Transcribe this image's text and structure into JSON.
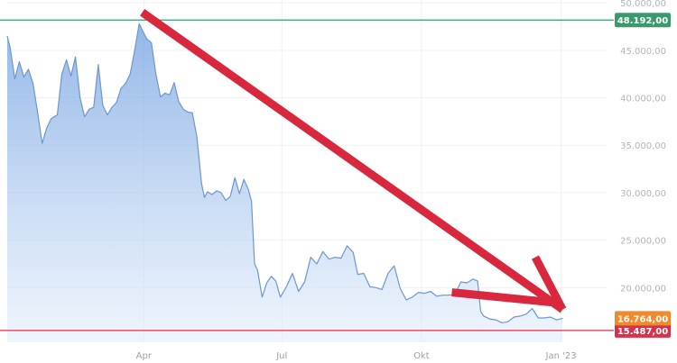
{
  "chart_data": {
    "type": "area",
    "x_ticks": [
      "Apr",
      "Jul",
      "Okt",
      "Jan '23"
    ],
    "y_ticks": [
      "50.000,00",
      "45.000,00",
      "40.000,00",
      "35.000,00",
      "30.000,00",
      "25.000,00",
      "20.000,00"
    ],
    "y_tick_values": [
      50000,
      45000,
      40000,
      35000,
      30000,
      25000,
      20000
    ],
    "ylim": [
      15000,
      50300
    ],
    "x_range": [
      "2022-01-01",
      "2023-01-31"
    ],
    "grid": true,
    "series": [
      {
        "points": [
          [
            "2022-01-01",
            46500
          ],
          [
            "2022-01-03",
            45200
          ],
          [
            "2022-01-06",
            42000
          ],
          [
            "2022-01-09",
            43800
          ],
          [
            "2022-01-12",
            42200
          ],
          [
            "2022-01-15",
            43000
          ],
          [
            "2022-01-18",
            41500
          ],
          [
            "2022-01-21",
            38500
          ],
          [
            "2022-01-24",
            35200
          ],
          [
            "2022-01-27",
            36800
          ],
          [
            "2022-01-30",
            37800
          ],
          [
            "2022-02-03",
            38200
          ],
          [
            "2022-02-06",
            42500
          ],
          [
            "2022-02-09",
            44000
          ],
          [
            "2022-02-12",
            42300
          ],
          [
            "2022-02-15",
            44300
          ],
          [
            "2022-02-18",
            40000
          ],
          [
            "2022-02-21",
            38000
          ],
          [
            "2022-02-24",
            38800
          ],
          [
            "2022-02-27",
            39000
          ],
          [
            "2022-03-02",
            43500
          ],
          [
            "2022-03-05",
            39200
          ],
          [
            "2022-03-08",
            38200
          ],
          [
            "2022-03-11",
            39000
          ],
          [
            "2022-03-14",
            39500
          ],
          [
            "2022-03-17",
            41000
          ],
          [
            "2022-03-20",
            41500
          ],
          [
            "2022-03-23",
            42500
          ],
          [
            "2022-03-26",
            45000
          ],
          [
            "2022-03-29",
            47800
          ],
          [
            "2022-04-01",
            46800
          ],
          [
            "2022-04-03",
            46200
          ],
          [
            "2022-04-06",
            45800
          ],
          [
            "2022-04-09",
            42500
          ],
          [
            "2022-04-12",
            40100
          ],
          [
            "2022-04-15",
            40500
          ],
          [
            "2022-04-18",
            40300
          ],
          [
            "2022-04-21",
            41600
          ],
          [
            "2022-04-24",
            39600
          ],
          [
            "2022-04-27",
            38800
          ],
          [
            "2022-04-30",
            38500
          ],
          [
            "2022-05-03",
            38400
          ],
          [
            "2022-05-06",
            35900
          ],
          [
            "2022-05-09",
            31000
          ],
          [
            "2022-05-11",
            29500
          ],
          [
            "2022-05-13",
            30100
          ],
          [
            "2022-05-16",
            29800
          ],
          [
            "2022-05-19",
            30200
          ],
          [
            "2022-05-22",
            30000
          ],
          [
            "2022-05-25",
            29200
          ],
          [
            "2022-05-28",
            29600
          ],
          [
            "2022-05-31",
            31600
          ],
          [
            "2022-06-03",
            29900
          ],
          [
            "2022-06-06",
            31400
          ],
          [
            "2022-06-09",
            30300
          ],
          [
            "2022-06-11",
            29100
          ],
          [
            "2022-06-13",
            22500
          ],
          [
            "2022-06-15",
            21800
          ],
          [
            "2022-06-18",
            19000
          ],
          [
            "2022-06-21",
            20500
          ],
          [
            "2022-06-24",
            21200
          ],
          [
            "2022-06-27",
            20700
          ],
          [
            "2022-06-30",
            19000
          ],
          [
            "2022-07-04",
            20100
          ],
          [
            "2022-07-08",
            21500
          ],
          [
            "2022-07-12",
            19600
          ],
          [
            "2022-07-16",
            20600
          ],
          [
            "2022-07-20",
            23200
          ],
          [
            "2022-07-24",
            22500
          ],
          [
            "2022-07-28",
            23800
          ],
          [
            "2022-08-01",
            23000
          ],
          [
            "2022-08-05",
            23200
          ],
          [
            "2022-08-09",
            23100
          ],
          [
            "2022-08-13",
            24400
          ],
          [
            "2022-08-17",
            23700
          ],
          [
            "2022-08-20",
            21400
          ],
          [
            "2022-08-24",
            21500
          ],
          [
            "2022-08-28",
            20100
          ],
          [
            "2022-09-01",
            20000
          ],
          [
            "2022-09-05",
            19800
          ],
          [
            "2022-09-09",
            21500
          ],
          [
            "2022-09-13",
            22300
          ],
          [
            "2022-09-17",
            19900
          ],
          [
            "2022-09-21",
            18700
          ],
          [
            "2022-09-25",
            19000
          ],
          [
            "2022-09-29",
            19500
          ],
          [
            "2022-10-03",
            19400
          ],
          [
            "2022-10-07",
            19600
          ],
          [
            "2022-10-11",
            19100
          ],
          [
            "2022-10-15",
            19200
          ],
          [
            "2022-10-19",
            19200
          ],
          [
            "2022-10-23",
            19300
          ],
          [
            "2022-10-27",
            20600
          ],
          [
            "2022-10-31",
            20500
          ],
          [
            "2022-11-04",
            20900
          ],
          [
            "2022-11-07",
            20700
          ],
          [
            "2022-11-09",
            17500
          ],
          [
            "2022-11-11",
            17000
          ],
          [
            "2022-11-15",
            16700
          ],
          [
            "2022-11-19",
            16600
          ],
          [
            "2022-11-23",
            16300
          ],
          [
            "2022-11-27",
            16400
          ],
          [
            "2022-12-01",
            16900
          ],
          [
            "2022-12-05",
            17000
          ],
          [
            "2022-12-09",
            17200
          ],
          [
            "2022-12-13",
            17800
          ],
          [
            "2022-12-17",
            16800
          ],
          [
            "2022-12-21",
            16800
          ],
          [
            "2022-12-25",
            16900
          ],
          [
            "2022-12-29",
            16600
          ],
          [
            "2023-01-02",
            16764
          ]
        ]
      }
    ],
    "reference_lines": [
      {
        "value": 48192,
        "label": "48.192,00",
        "color": "#3a9a6e"
      },
      {
        "value": 15487,
        "label": "15.487,00",
        "color": "#d9304c"
      }
    ],
    "last_value": {
      "value": 16764,
      "label": "16.764,00",
      "color": "#f08a2c"
    },
    "area_color": "#6f9fe0",
    "line_color": "#6c97cf",
    "annotation_arrows": [
      {
        "from": [
          "2022-03-31",
          49000
        ],
        "to": [
          "2023-01-02",
          17700
        ],
        "color": "#d9283e"
      },
      {
        "from": [
          "2022-10-21",
          19500
        ],
        "to": [
          "2022-12-29",
          18400
        ],
        "color": "#d9283e"
      },
      {
        "from": [
          "2022-12-15",
          23200
        ],
        "to": [
          "2023-01-02",
          17700
        ],
        "color": "#d9283e"
      }
    ]
  }
}
